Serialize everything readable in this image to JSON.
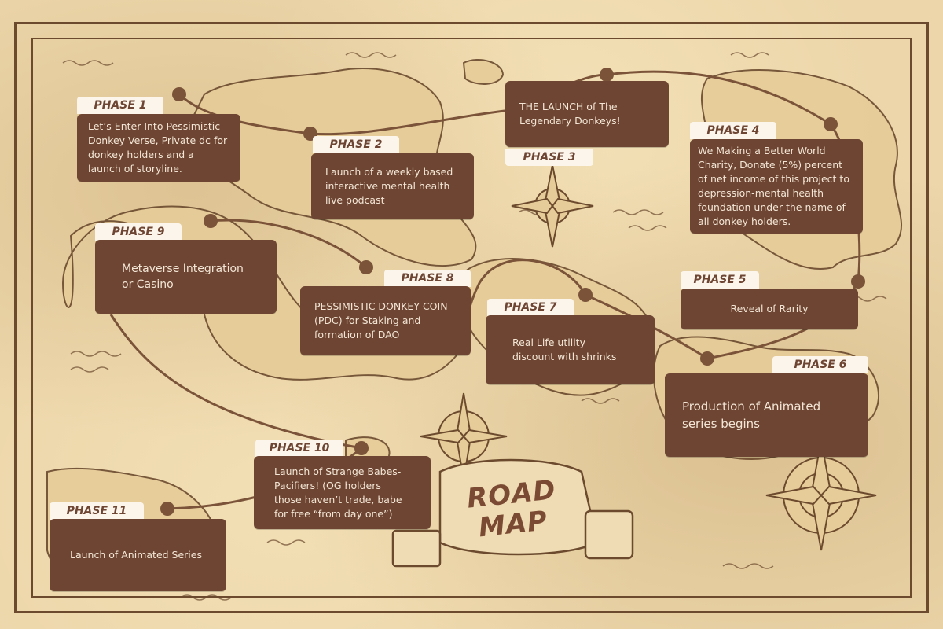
{
  "roadmap_title": {
    "line1": "ROAD",
    "line2": "MAP"
  },
  "phases": [
    {
      "label": "PHASE 1",
      "text": "Let’s Enter  Into Pessimistic Donkey Verse, Private dc for donkey holders and a launch of storyline."
    },
    {
      "label": "PHASE 2",
      "text": "Launch of a weekly based interactive mental health live podcast"
    },
    {
      "label": "PHASE 3",
      "text": "THE LAUNCH of  The Legendary Donkeys!"
    },
    {
      "label": "PHASE 4",
      "text": "We Making a Better World Charity, Donate (5%) percent of net income of this project to depression-mental health foundation under the name of all donkey holders."
    },
    {
      "label": "PHASE 5",
      "text": "Reveal of Rarity"
    },
    {
      "label": "PHASE 6",
      "text": "Production of Animated series begins"
    },
    {
      "label": "PHASE 7",
      "text": "Real Life utility discount with shrinks"
    },
    {
      "label": "PHASE 8",
      "text": "PESSIMISTIC DONKEY COIN (PDC) for Staking and formation of DAO"
    },
    {
      "label": "PHASE 9",
      "text": "Metaverse Integration or Casino"
    },
    {
      "label": "PHASE 10",
      "text": "Launch of Strange Babes-Pacifiers! (OG holders those haven’t trade, babe for free “from day one”)"
    },
    {
      "label": "PHASE 11",
      "text": "Launch of Animated Series"
    }
  ],
  "colors": {
    "card": "#6e4532",
    "tag_bg": "#fbf5ec",
    "parchment": "#ecd6aa",
    "ink": "#6b4a2e"
  }
}
